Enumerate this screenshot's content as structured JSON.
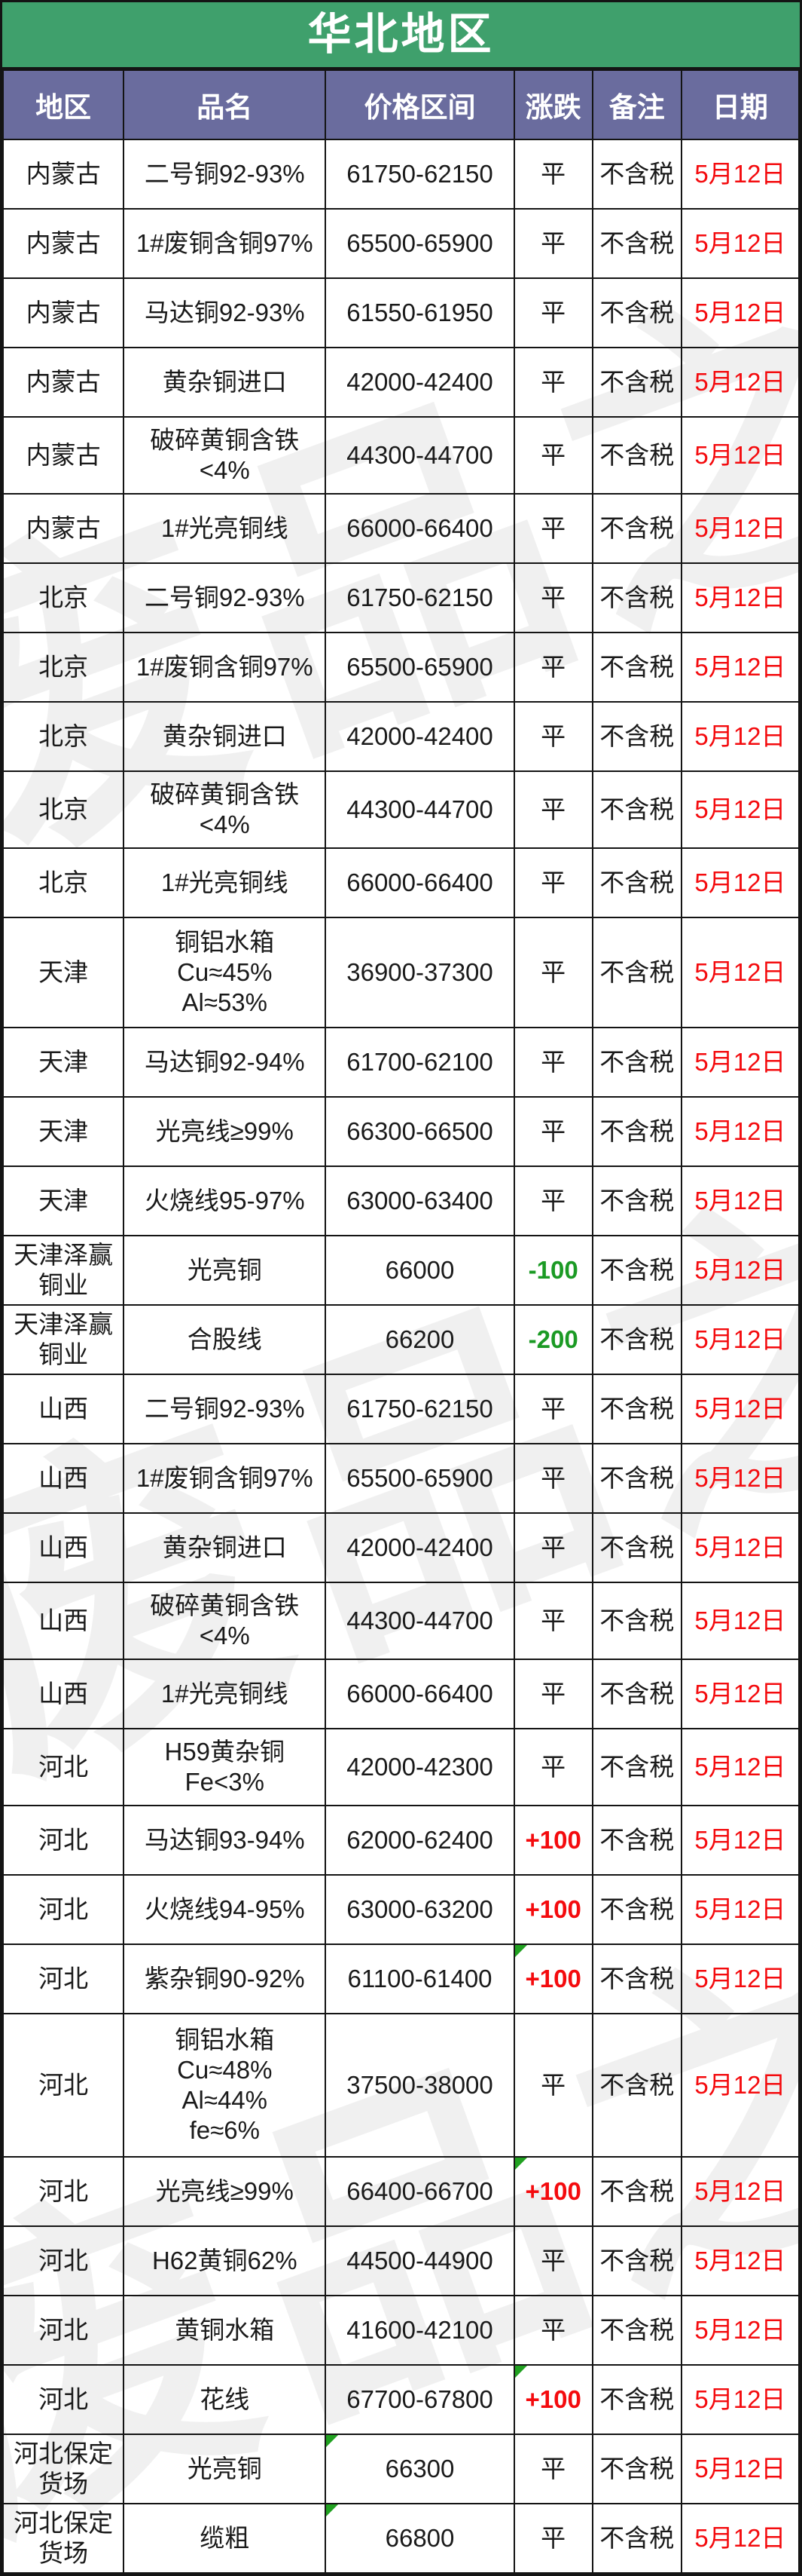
{
  "title": "华北地区",
  "watermark": "废品之家",
  "columns": [
    "地区",
    "品名",
    "价格区间",
    "涨跌",
    "备注",
    "日期"
  ],
  "colors": {
    "title_bg": "#3FA06C",
    "header_bg": "#6A6C9E",
    "border": "#141414",
    "date_red": "#F40B0E",
    "change_up_red": "#F40B0E",
    "change_down_green": "#1B9A24",
    "change_flat_black": "#1A1A1A"
  },
  "rows": [
    {
      "region": "内蒙古",
      "product": "二号铜92-93%",
      "price": "61750-62150",
      "change": "平",
      "change_type": "flat",
      "note": "不含税",
      "date": "5月12日"
    },
    {
      "region": "内蒙古",
      "product": "1#废铜含铜97%",
      "price": "65500-65900",
      "change": "平",
      "change_type": "flat",
      "note": "不含税",
      "date": "5月12日"
    },
    {
      "region": "内蒙古",
      "product": "马达铜92-93%",
      "price": "61550-61950",
      "change": "平",
      "change_type": "flat",
      "note": "不含税",
      "date": "5月12日"
    },
    {
      "region": "内蒙古",
      "product": "黄杂铜进口",
      "price": "42000-42400",
      "change": "平",
      "change_type": "flat",
      "note": "不含税",
      "date": "5月12日"
    },
    {
      "region": "内蒙古",
      "product": "破碎黄铜含铁\n<4%",
      "price": "44300-44700",
      "change": "平",
      "change_type": "flat",
      "note": "不含税",
      "date": "5月12日"
    },
    {
      "region": "内蒙古",
      "product": "1#光亮铜线",
      "price": "66000-66400",
      "change": "平",
      "change_type": "flat",
      "note": "不含税",
      "date": "5月12日"
    },
    {
      "region": "北京",
      "product": "二号铜92-93%",
      "price": "61750-62150",
      "change": "平",
      "change_type": "flat",
      "note": "不含税",
      "date": "5月12日"
    },
    {
      "region": "北京",
      "product": "1#废铜含铜97%",
      "price": "65500-65900",
      "change": "平",
      "change_type": "flat",
      "note": "不含税",
      "date": "5月12日"
    },
    {
      "region": "北京",
      "product": "黄杂铜进口",
      "price": "42000-42400",
      "change": "平",
      "change_type": "flat",
      "note": "不含税",
      "date": "5月12日"
    },
    {
      "region": "北京",
      "product": "破碎黄铜含铁\n<4%",
      "price": "44300-44700",
      "change": "平",
      "change_type": "flat",
      "note": "不含税",
      "date": "5月12日"
    },
    {
      "region": "北京",
      "product": "1#光亮铜线",
      "price": "66000-66400",
      "change": "平",
      "change_type": "flat",
      "note": "不含税",
      "date": "5月12日"
    },
    {
      "region": "天津",
      "product": "铜铝水箱\nCu≈45%\nAl≈53%",
      "price": "36900-37300",
      "change": "平",
      "change_type": "flat",
      "note": "不含税",
      "date": "5月12日"
    },
    {
      "region": "天津",
      "product": "马达铜92-94%",
      "price": "61700-62100",
      "change": "平",
      "change_type": "flat",
      "note": "不含税",
      "date": "5月12日"
    },
    {
      "region": "天津",
      "product": "光亮线≥99%",
      "price": "66300-66500",
      "change": "平",
      "change_type": "flat",
      "note": "不含税",
      "date": "5月12日"
    },
    {
      "region": "天津",
      "product": "火烧线95-97%",
      "price": "63000-63400",
      "change": "平",
      "change_type": "flat",
      "note": "不含税",
      "date": "5月12日"
    },
    {
      "region": "天津泽赢\n铜业",
      "product": "光亮铜",
      "price": "66000",
      "change": "-100",
      "change_type": "down",
      "note": "不含税",
      "date": "5月12日"
    },
    {
      "region": "天津泽赢\n铜业",
      "product": "合股线",
      "price": "66200",
      "change": "-200",
      "change_type": "down",
      "note": "不含税",
      "date": "5月12日"
    },
    {
      "region": "山西",
      "product": "二号铜92-93%",
      "price": "61750-62150",
      "change": "平",
      "change_type": "flat",
      "note": "不含税",
      "date": "5月12日"
    },
    {
      "region": "山西",
      "product": "1#废铜含铜97%",
      "price": "65500-65900",
      "change": "平",
      "change_type": "flat",
      "note": "不含税",
      "date": "5月12日"
    },
    {
      "region": "山西",
      "product": "黄杂铜进口",
      "price": "42000-42400",
      "change": "平",
      "change_type": "flat",
      "note": "不含税",
      "date": "5月12日"
    },
    {
      "region": "山西",
      "product": "破碎黄铜含铁\n<4%",
      "price": "44300-44700",
      "change": "平",
      "change_type": "flat",
      "note": "不含税",
      "date": "5月12日"
    },
    {
      "region": "山西",
      "product": "1#光亮铜线",
      "price": "66000-66400",
      "change": "平",
      "change_type": "flat",
      "note": "不含税",
      "date": "5月12日"
    },
    {
      "region": "河北",
      "product": "H59黄杂铜\nFe<3%",
      "price": "42000-42300",
      "change": "平",
      "change_type": "flat",
      "note": "不含税",
      "date": "5月12日"
    },
    {
      "region": "河北",
      "product": "马达铜93-94%",
      "price": "62000-62400",
      "change": "+100",
      "change_type": "up",
      "note": "不含税",
      "date": "5月12日"
    },
    {
      "region": "河北",
      "product": "火烧线94-95%",
      "price": "63000-63200",
      "change": "+100",
      "change_type": "up",
      "note": "不含税",
      "date": "5月12日"
    },
    {
      "region": "河北",
      "product": "紫杂铜90-92%",
      "price": "61100-61400",
      "change": "+100",
      "change_type": "up",
      "note": "不含税",
      "date": "5月12日",
      "marker": "change"
    },
    {
      "region": "河北",
      "product": "铜铝水箱\nCu≈48%\nAl≈44%\nfe≈6%",
      "price": "37500-38000",
      "change": "平",
      "change_type": "flat",
      "note": "不含税",
      "date": "5月12日"
    },
    {
      "region": "河北",
      "product": "光亮线≥99%",
      "price": "66400-66700",
      "change": "+100",
      "change_type": "up",
      "note": "不含税",
      "date": "5月12日",
      "marker": "change"
    },
    {
      "region": "河北",
      "product": "H62黄铜62%",
      "price": "44500-44900",
      "change": "平",
      "change_type": "flat",
      "note": "不含税",
      "date": "5月12日"
    },
    {
      "region": "河北",
      "product": "黄铜水箱",
      "price": "41600-42100",
      "change": "平",
      "change_type": "flat",
      "note": "不含税",
      "date": "5月12日"
    },
    {
      "region": "河北",
      "product": "花线",
      "price": "67700-67800",
      "change": "+100",
      "change_type": "up",
      "note": "不含税",
      "date": "5月12日",
      "marker": "change"
    },
    {
      "region": "河北保定\n货场",
      "product": "光亮铜",
      "price": "66300",
      "change": "平",
      "change_type": "flat",
      "note": "不含税",
      "date": "5月12日",
      "marker": "price"
    },
    {
      "region": "河北保定\n货场",
      "product": "缆粗",
      "price": "66800",
      "change": "平",
      "change_type": "flat",
      "note": "不含税",
      "date": "5月12日",
      "marker": "price"
    }
  ]
}
